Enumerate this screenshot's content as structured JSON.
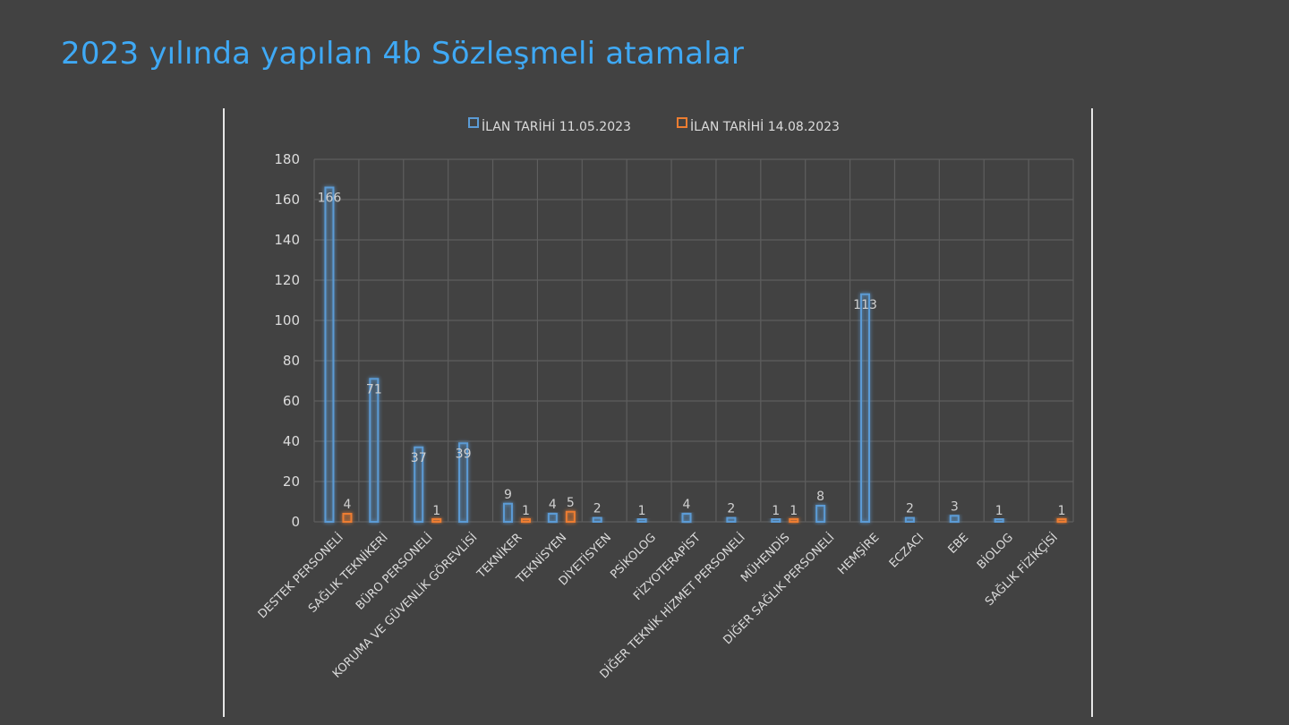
{
  "slide": {
    "title": "2023 yılında yapılan 4b Sözleşmeli atamalar"
  },
  "colors": {
    "background": "#424242",
    "title": "#3fa9f5",
    "series1": "#5b9bd5",
    "series2": "#ed7d31",
    "grid": "#5e5e5e"
  },
  "chart_data": {
    "type": "bar",
    "title": "",
    "xlabel": "",
    "ylabel": "",
    "ylim": [
      0,
      180
    ],
    "yticks": [
      0,
      20,
      40,
      60,
      80,
      100,
      120,
      140,
      160,
      180
    ],
    "grid": true,
    "legend_position": "top",
    "categories": [
      "DESTEK PERSONELİ",
      "SAĞLIK TEKNİKERİ",
      "BÜRO PERSONELİ",
      "KORUMA VE GÜVENLİK GÖREVLİSİ",
      "TEKNİKER",
      "TEKNİSYEN",
      "DİYETİSYEN",
      "PSİKOLOG",
      "FİZYOTERAPİST",
      "DİĞER TEKNİK HİZMET PERSONELİ",
      "MÜHENDİS",
      "DİĞER SAĞLIK PERSONELİ",
      "HEMŞİRE",
      "ECZACI",
      "EBE",
      "BİOLOG",
      "SAĞLIK FİZİKÇİSİ"
    ],
    "series": [
      {
        "name": "İLAN TARİHİ 11.05.2023",
        "color": "#5b9bd5",
        "values": [
          166,
          71,
          37,
          39,
          9,
          4,
          2,
          1,
          4,
          2,
          1,
          8,
          113,
          2,
          3,
          1,
          null
        ]
      },
      {
        "name": "İLAN TARİHİ 14.08.2023",
        "color": "#ed7d31",
        "values": [
          4,
          null,
          1,
          null,
          1,
          5,
          null,
          null,
          null,
          null,
          1,
          null,
          null,
          null,
          null,
          null,
          1
        ]
      }
    ]
  }
}
